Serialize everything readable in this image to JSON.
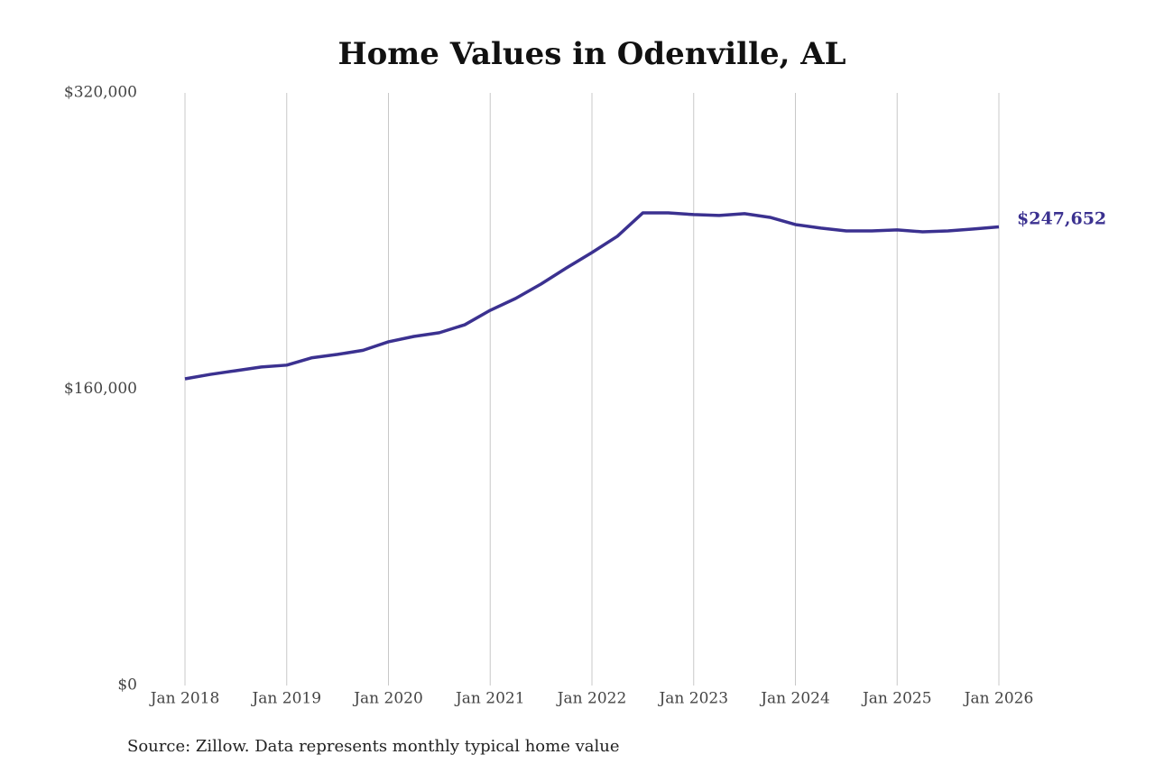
{
  "chart_data": {
    "type": "line",
    "title": "Home Values in Odenville, AL",
    "source": "Source: Zillow. Data represents monthly typical home value",
    "x": [
      "2018-01",
      "2018-04",
      "2018-07",
      "2018-10",
      "2019-01",
      "2019-04",
      "2019-07",
      "2019-10",
      "2020-01",
      "2020-04",
      "2020-07",
      "2020-10",
      "2021-01",
      "2021-04",
      "2021-07",
      "2021-10",
      "2022-01",
      "2022-04",
      "2022-07",
      "2022-10",
      "2023-01",
      "2023-04",
      "2023-07",
      "2023-10",
      "2024-01",
      "2024-04",
      "2024-07",
      "2024-10",
      "2025-01",
      "2025-04",
      "2025-07",
      "2025-10",
      "2026-01"
    ],
    "series": [
      {
        "name": "Home value",
        "color": "#3b3190",
        "values": [
          165600,
          168000,
          170000,
          172000,
          173000,
          177000,
          178800,
          181000,
          185600,
          188500,
          190500,
          194800,
          202600,
          209000,
          216800,
          225500,
          233800,
          242600,
          255200,
          255200,
          254300,
          253800,
          254800,
          252800,
          248900,
          247000,
          245500,
          245500,
          246000,
          245000,
          245500,
          246500,
          247652
        ],
        "value_labels": [
          null,
          null,
          null,
          null,
          null,
          null,
          null,
          null,
          null,
          null,
          null,
          null,
          null,
          null,
          null,
          null,
          null,
          null,
          null,
          null,
          null,
          null,
          null,
          null,
          null,
          null,
          null,
          null,
          null,
          null,
          null,
          null,
          "$247,652"
        ]
      }
    ],
    "xlim": [
      "2018-01",
      "2026-01"
    ],
    "xticks": [
      {
        "value": "2018-01",
        "label": "Jan 2018"
      },
      {
        "value": "2019-01",
        "label": "Jan 2019"
      },
      {
        "value": "2020-01",
        "label": "Jan 2020"
      },
      {
        "value": "2021-01",
        "label": "Jan 2021"
      },
      {
        "value": "2022-01",
        "label": "Jan 2022"
      },
      {
        "value": "2023-01",
        "label": "Jan 2023"
      },
      {
        "value": "2024-01",
        "label": "Jan 2024"
      },
      {
        "value": "2025-01",
        "label": "Jan 2025"
      },
      {
        "value": "2026-01",
        "label": "Jan 2026"
      }
    ],
    "ylim": [
      0,
      320000
    ],
    "yticks": [
      {
        "value": 0,
        "label": "$0"
      },
      {
        "value": 160000,
        "label": "$160,000"
      },
      {
        "value": 320000,
        "label": "$320,000"
      }
    ],
    "grid": "x"
  }
}
